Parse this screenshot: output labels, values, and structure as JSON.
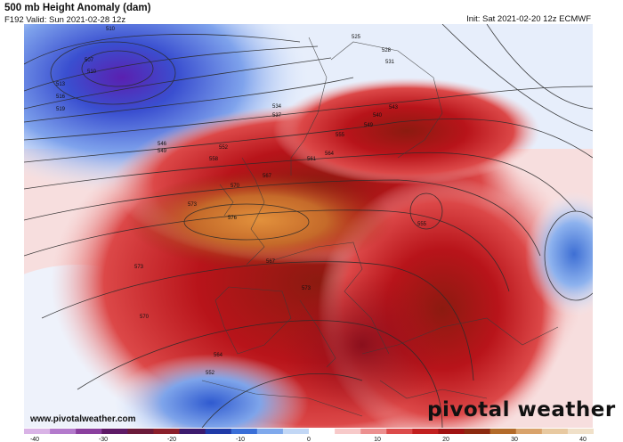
{
  "header": {
    "title": "500 mb Height Anomaly (dam)",
    "subtitle": "F192 Valid: Sun 2021-02-28 12z",
    "init": "Init: Sat 2021-02-20 12z ECMWF"
  },
  "watermark": {
    "url": "www.pivotalweather.com",
    "logo": "pivotal weather"
  },
  "contour_labels": [
    "510",
    "507",
    "510",
    "513",
    "516",
    "519",
    "525",
    "528",
    "531",
    "534",
    "537",
    "540",
    "543",
    "546",
    "549",
    "549",
    "552",
    "555",
    "558",
    "561",
    "564",
    "567",
    "570",
    "573",
    "576",
    "573",
    "567",
    "570",
    "564",
    "573",
    "552",
    "555"
  ],
  "colorbar": {
    "ticks": [
      "-40",
      "-30",
      "-20",
      "-10",
      "0",
      "10",
      "20",
      "30",
      "40"
    ],
    "colors": [
      "#d9b3e6",
      "#b37acc",
      "#8a3f9e",
      "#5e1a66",
      "#6b1a3a",
      "#8a1f2b",
      "#3c1a6e",
      "#1f3aa8",
      "#3a6fd8",
      "#7fa9ec",
      "#c2d7f5",
      "#ffffff",
      "#f7c9c9",
      "#ec8f8f",
      "#dc4a4a",
      "#c21f1f",
      "#a01212",
      "#8c2a10",
      "#b36b2a",
      "#d9a36b",
      "#e8c9a0",
      "#f0e0c8"
    ]
  },
  "colors": {
    "negative_anomaly": "#3a5fd0",
    "positive_anomaly": "#c4161c",
    "peak_anomaly": "#d67a2e"
  }
}
